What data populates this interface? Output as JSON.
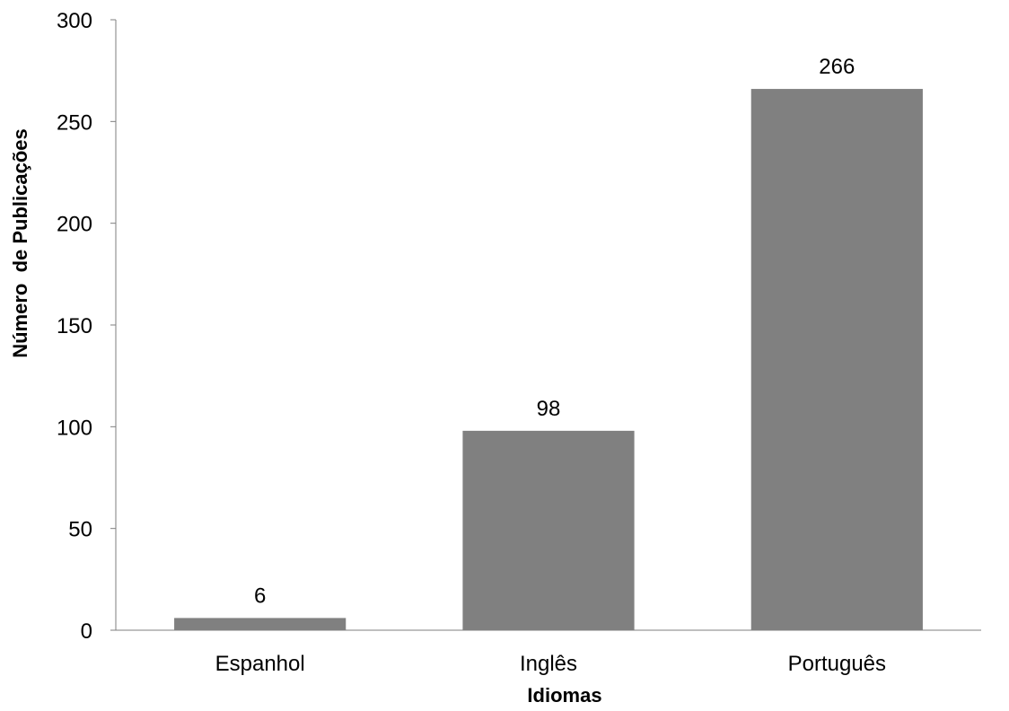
{
  "chart_data": {
    "type": "bar",
    "title": "",
    "xlabel": "Idiomas",
    "ylabel": "Número  de Publicações",
    "categories": [
      "Espanhol",
      "Inglês",
      "Português"
    ],
    "values": [
      6,
      98,
      266
    ],
    "data_labels": [
      "6",
      "98",
      "266"
    ],
    "ylim": [
      0,
      300
    ],
    "yticks": [
      0,
      50,
      100,
      150,
      200,
      250,
      300
    ],
    "grid": false,
    "legend": "none",
    "colors": {
      "bar": "#808080",
      "axis": "#7f7f7f",
      "text": "#000000",
      "background": "#ffffff"
    }
  }
}
